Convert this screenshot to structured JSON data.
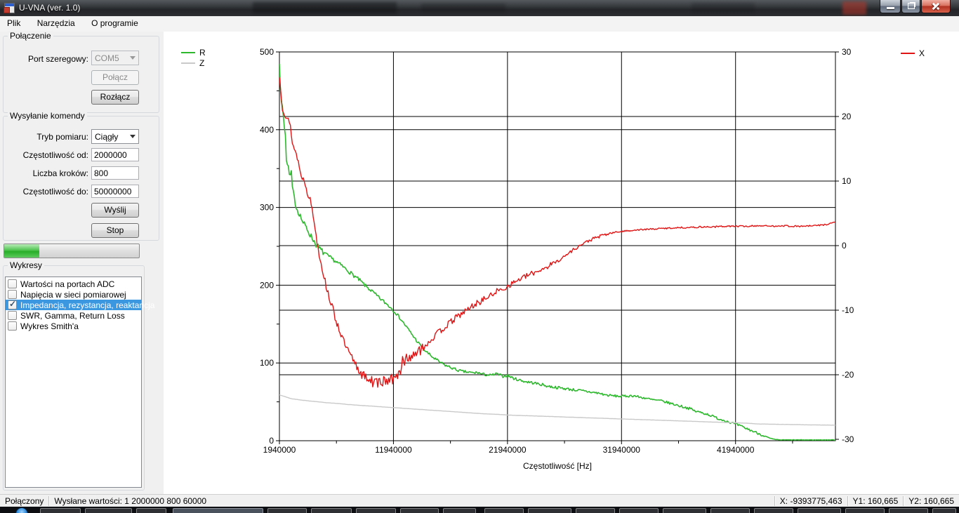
{
  "window": {
    "title": "U-VNA (ver. 1.0)"
  },
  "menu": {
    "items": [
      "Plik",
      "Narzędzia",
      "O programie"
    ]
  },
  "connection": {
    "title": "Połączenie",
    "port_label": "Port szeregowy:",
    "port_value": "COM5",
    "connect": "Połącz",
    "disconnect": "Rozłącz"
  },
  "command": {
    "title": "Wysyłanie komendy",
    "mode_label": "Tryb pomiaru:",
    "mode_value": "Ciągły",
    "from_label": "Częstotliwość od:",
    "from_value": "2000000",
    "steps_label": "Liczba kroków:",
    "steps_value": "800",
    "to_label": "Częstotliwość do:",
    "to_value": "50000000",
    "send": "Wyślij",
    "stop": "Stop",
    "progress_percent": 26
  },
  "charts_panel": {
    "title": "Wykresy",
    "items": [
      {
        "label": "Wartości na portach ADC",
        "checked": false,
        "selected": false
      },
      {
        "label": "Napięcia w sieci pomiarowej",
        "checked": false,
        "selected": false
      },
      {
        "label": "Impedancja, rezystancja, reaktancja",
        "checked": true,
        "selected": true
      },
      {
        "label": "SWR, Gamma, Return Loss",
        "checked": false,
        "selected": false
      },
      {
        "label": "Wykres Smith'a",
        "checked": false,
        "selected": false
      }
    ]
  },
  "status_bar": {
    "connection": "Połączony",
    "sent": "Wysłane wartości: 1 2000000 800 60000",
    "x": "X: -9393775,463",
    "y1": "Y1: 160,665",
    "y2": "Y2: 160,665"
  },
  "chart_data": {
    "type": "line",
    "xlabel": "Częstotliwość [Hz]",
    "x_range": [
      1940000,
      50700000
    ],
    "x_ticks": [
      1940000,
      11940000,
      21940000,
      31940000,
      41940000
    ],
    "x_minor_step": 5000000,
    "left_axis": {
      "range": [
        0,
        500
      ],
      "ticks": [
        0,
        100,
        200,
        300,
        400,
        500
      ],
      "minor_step": 50
    },
    "right_axis": {
      "range": [
        -30,
        30
      ],
      "ticks": [
        -30,
        -20,
        -10,
        0,
        10,
        20,
        30
      ]
    },
    "grid": true,
    "legend_left": [
      {
        "series": "R",
        "color": "#2db82d"
      },
      {
        "series": "Z",
        "color": "#c9c9c9"
      }
    ],
    "legend_right": [
      {
        "series": "X",
        "color": "#e01414"
      }
    ],
    "series": [
      {
        "name": "R",
        "axis": "left",
        "color": "#2db82d",
        "points": [
          [
            1940000,
            480
          ],
          [
            2060000,
            440
          ],
          [
            2250000,
            431
          ],
          [
            2300000,
            409
          ],
          [
            2440000,
            404
          ],
          [
            2560000,
            359
          ],
          [
            2800000,
            355
          ],
          [
            2930000,
            341
          ],
          [
            3050000,
            328
          ],
          [
            3230000,
            314
          ],
          [
            3420000,
            300
          ],
          [
            3720000,
            291
          ],
          [
            4030000,
            280
          ],
          [
            4340000,
            273
          ],
          [
            4710000,
            263
          ],
          [
            5140000,
            253
          ],
          [
            5570000,
            245
          ],
          [
            6060000,
            239
          ],
          [
            6930000,
            230
          ],
          [
            7500000,
            224
          ],
          [
            8000000,
            218
          ],
          [
            8500000,
            212
          ],
          [
            9000000,
            206
          ],
          [
            9500000,
            199
          ],
          [
            10000000,
            193
          ],
          [
            10500000,
            186
          ],
          [
            11000000,
            180
          ],
          [
            11500000,
            174
          ],
          [
            11940000,
            168
          ],
          [
            12500000,
            158
          ],
          [
            13000000,
            148
          ],
          [
            13500000,
            138
          ],
          [
            14000000,
            128
          ],
          [
            14500000,
            119
          ],
          [
            15000000,
            112
          ],
          [
            15500000,
            106
          ],
          [
            16000000,
            101
          ],
          [
            16500000,
            97
          ],
          [
            17000000,
            94
          ],
          [
            17500000,
            91
          ],
          [
            18000000,
            89
          ],
          [
            18500000,
            88
          ],
          [
            19000000,
            87
          ],
          [
            19300000,
            88
          ],
          [
            19600000,
            86
          ],
          [
            20000000,
            85
          ],
          [
            20500000,
            84
          ],
          [
            21000000,
            86
          ],
          [
            21500000,
            83
          ],
          [
            21940000,
            84
          ],
          [
            22500000,
            80
          ],
          [
            23000000,
            78
          ],
          [
            23500000,
            76
          ],
          [
            24000000,
            75
          ],
          [
            25000000,
            72
          ],
          [
            25500000,
            70
          ],
          [
            26000000,
            69
          ],
          [
            27000000,
            67
          ],
          [
            28000000,
            65
          ],
          [
            29000000,
            63
          ],
          [
            30000000,
            61
          ],
          [
            30500000,
            59
          ],
          [
            31000000,
            58
          ],
          [
            31940000,
            57
          ],
          [
            33000000,
            58
          ],
          [
            33500000,
            56
          ],
          [
            34000000,
            55
          ],
          [
            34500000,
            53
          ],
          [
            35000000,
            52
          ],
          [
            35500000,
            51
          ],
          [
            36000000,
            49
          ],
          [
            36500000,
            47
          ],
          [
            37000000,
            45
          ],
          [
            37500000,
            43
          ],
          [
            38000000,
            41
          ],
          [
            38400000,
            38
          ],
          [
            39000000,
            36
          ],
          [
            39500000,
            34
          ],
          [
            40000000,
            31
          ],
          [
            40500000,
            28
          ],
          [
            41000000,
            26
          ],
          [
            41600000,
            23
          ],
          [
            42000000,
            21
          ],
          [
            42500000,
            18
          ],
          [
            43000000,
            15
          ],
          [
            43500000,
            12
          ],
          [
            44000000,
            9
          ],
          [
            44500000,
            6
          ],
          [
            45000000,
            3
          ],
          [
            45400000,
            1.5
          ],
          [
            46000000,
            1
          ],
          [
            50600000,
            1
          ]
        ]
      },
      {
        "name": "X",
        "axis": "right",
        "color": "#e01414",
        "points": [
          [
            1940000,
            26
          ],
          [
            2100000,
            23.5
          ],
          [
            2200000,
            21.4
          ],
          [
            2350000,
            20.8
          ],
          [
            2500000,
            20
          ],
          [
            2700000,
            19.5
          ],
          [
            2900000,
            18.4
          ],
          [
            3100000,
            15.7
          ],
          [
            3400000,
            14.3
          ],
          [
            3600000,
            13
          ],
          [
            3800000,
            11
          ],
          [
            4100000,
            10.1
          ],
          [
            4250000,
            9.4
          ],
          [
            4400000,
            8.1
          ],
          [
            4650000,
            7.1
          ],
          [
            4850000,
            5.2
          ],
          [
            5050000,
            3
          ],
          [
            5200000,
            1
          ],
          [
            5400000,
            -1
          ],
          [
            5700000,
            -3.5
          ],
          [
            6000000,
            -6
          ],
          [
            6400000,
            -8.5
          ],
          [
            6800000,
            -11
          ],
          [
            7200000,
            -13
          ],
          [
            7600000,
            -15
          ],
          [
            8000000,
            -16.5
          ],
          [
            8400000,
            -18
          ],
          [
            8800000,
            -19
          ],
          [
            9200000,
            -20
          ],
          [
            9600000,
            -20.7
          ],
          [
            10000000,
            -21
          ],
          [
            10400000,
            -21.3
          ],
          [
            10800000,
            -20.9
          ],
          [
            11200000,
            -21.2
          ],
          [
            11600000,
            -20.6
          ],
          [
            12000000,
            -20.9
          ],
          [
            12400000,
            -19.8
          ],
          [
            12800000,
            -18.6
          ],
          [
            13100000,
            -17.5
          ],
          [
            13700000,
            -16.8
          ],
          [
            14200000,
            -16.3
          ],
          [
            14600000,
            -15.7
          ],
          [
            15000000,
            -15
          ],
          [
            15400000,
            -14.3
          ],
          [
            15800000,
            -13.6
          ],
          [
            16200000,
            -13
          ],
          [
            16600000,
            -12.4
          ],
          [
            17000000,
            -11.8
          ],
          [
            17400000,
            -11.2
          ],
          [
            17800000,
            -10.7
          ],
          [
            18200000,
            -10.2
          ],
          [
            18600000,
            -9.7
          ],
          [
            19000000,
            -9.2
          ],
          [
            19400000,
            -8.8
          ],
          [
            19800000,
            -8.4
          ],
          [
            20200000,
            -8
          ],
          [
            20600000,
            -7.6
          ],
          [
            21000000,
            -7
          ],
          [
            21400000,
            -6.9
          ],
          [
            21940000,
            -6.3
          ],
          [
            22500000,
            -5.7
          ],
          [
            23000000,
            -5.2
          ],
          [
            23500000,
            -4.8
          ],
          [
            24000000,
            -4.4
          ],
          [
            24500000,
            -4
          ],
          [
            25000000,
            -3.6
          ],
          [
            25500000,
            -3.2
          ],
          [
            26000000,
            -2.7
          ],
          [
            26500000,
            -2.2
          ],
          [
            27000000,
            -1.6
          ],
          [
            27500000,
            -0.9
          ],
          [
            28000000,
            -0.3
          ],
          [
            28500000,
            0.2
          ],
          [
            29000000,
            0.7
          ],
          [
            29500000,
            1.1
          ],
          [
            30000000,
            1.4
          ],
          [
            30500000,
            1.7
          ],
          [
            31000000,
            1.9
          ],
          [
            31500000,
            2.1
          ],
          [
            32000000,
            2.2
          ],
          [
            33000000,
            2.4
          ],
          [
            34000000,
            2.5
          ],
          [
            35000000,
            2.6
          ],
          [
            36000000,
            2.7
          ],
          [
            37000000,
            2.8
          ],
          [
            38000000,
            2.8
          ],
          [
            39000000,
            2.9
          ],
          [
            40000000,
            2.9
          ],
          [
            41000000,
            3
          ],
          [
            42000000,
            3
          ],
          [
            43000000,
            3
          ],
          [
            44000000,
            3.1
          ],
          [
            45000000,
            3
          ],
          [
            46000000,
            3.1
          ],
          [
            47000000,
            3
          ],
          [
            48000000,
            3
          ],
          [
            49000000,
            3.1
          ],
          [
            50000000,
            3.3
          ],
          [
            50600000,
            3.6
          ]
        ]
      },
      {
        "name": "Z",
        "axis": "left",
        "color": "#c9c9c9",
        "points": [
          [
            1940000,
            59
          ],
          [
            3000000,
            54
          ],
          [
            4000000,
            52
          ],
          [
            5000000,
            50.5
          ],
          [
            6000000,
            49
          ],
          [
            7000000,
            48
          ],
          [
            8000000,
            46.5
          ],
          [
            9000000,
            45.5
          ],
          [
            10000000,
            44.5
          ],
          [
            11000000,
            43.5
          ],
          [
            12000000,
            42.5
          ],
          [
            13000000,
            41.5
          ],
          [
            14000000,
            40.5
          ],
          [
            15000000,
            39.5
          ],
          [
            16000000,
            38.5
          ],
          [
            17000000,
            37.5
          ],
          [
            18000000,
            36.5
          ],
          [
            19000000,
            35.5
          ],
          [
            20000000,
            34.5
          ],
          [
            21000000,
            34
          ],
          [
            22000000,
            33
          ],
          [
            23000000,
            32.5
          ],
          [
            24000000,
            32
          ],
          [
            25000000,
            31.5
          ],
          [
            26000000,
            31
          ],
          [
            27000000,
            30.5
          ],
          [
            28000000,
            30
          ],
          [
            29000000,
            29.5
          ],
          [
            30000000,
            29
          ],
          [
            31000000,
            28.5
          ],
          [
            32000000,
            28
          ],
          [
            33000000,
            27.5
          ],
          [
            34000000,
            27
          ],
          [
            35000000,
            26.5
          ],
          [
            36000000,
            26
          ],
          [
            37000000,
            25.5
          ],
          [
            38000000,
            25
          ],
          [
            39000000,
            24.5
          ],
          [
            40000000,
            24
          ],
          [
            41000000,
            23.5
          ],
          [
            42000000,
            23
          ],
          [
            43000000,
            22.5
          ],
          [
            44000000,
            21.5
          ],
          [
            45000000,
            21.3
          ],
          [
            46000000,
            21
          ],
          [
            47000000,
            20.8
          ],
          [
            48000000,
            20.5
          ],
          [
            49000000,
            20.3
          ],
          [
            50600000,
            20
          ]
        ]
      }
    ]
  }
}
